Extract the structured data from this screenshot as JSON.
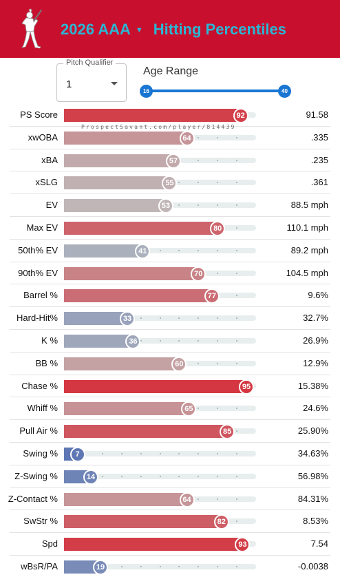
{
  "header": {
    "year_level": "2026 AAA",
    "stat_type": "Hitting Percentiles",
    "background_color": "#c8102e",
    "title_color": "#2bb6d4",
    "logo_icon": "batter-silhouette-icon"
  },
  "controls": {
    "pitch_qualifier": {
      "label": "Pitch Qualifier",
      "value": "1"
    },
    "age_range": {
      "label": "Age Range",
      "min": "16",
      "max": "40",
      "slider_color": "#1976d2"
    }
  },
  "watermark": "ProspectSavant.com/player/814439",
  "metrics": [
    {
      "label": "PS Score",
      "percentile": "92",
      "value": "91.58"
    },
    {
      "label": "xwOBA",
      "percentile": "64",
      "value": ".335"
    },
    {
      "label": "xBA",
      "percentile": "57",
      "value": ".235"
    },
    {
      "label": "xSLG",
      "percentile": "55",
      "value": ".361"
    },
    {
      "label": "EV",
      "percentile": "53",
      "value": "88.5 mph"
    },
    {
      "label": "Max EV",
      "percentile": "80",
      "value": "110.1 mph"
    },
    {
      "label": "50th% EV",
      "percentile": "41",
      "value": "89.2 mph"
    },
    {
      "label": "90th% EV",
      "percentile": "70",
      "value": "104.5 mph"
    },
    {
      "label": "Barrel %",
      "percentile": "77",
      "value": "9.6%"
    },
    {
      "label": "Hard-Hit%",
      "percentile": "33",
      "value": "32.7%"
    },
    {
      "label": "K %",
      "percentile": "36",
      "value": "26.9%"
    },
    {
      "label": "BB %",
      "percentile": "60",
      "value": "12.9%"
    },
    {
      "label": "Chase %",
      "percentile": "95",
      "value": "15.38%"
    },
    {
      "label": "Whiff %",
      "percentile": "65",
      "value": "24.6%"
    },
    {
      "label": "Pull Air %",
      "percentile": "85",
      "value": "25.90%"
    },
    {
      "label": "Swing %",
      "percentile": "7",
      "value": "34.63%"
    },
    {
      "label": "Z-Swing %",
      "percentile": "14",
      "value": "56.98%"
    },
    {
      "label": "Z-Contact %",
      "percentile": "64",
      "value": "84.31%"
    },
    {
      "label": "SwStr %",
      "percentile": "82",
      "value": "8.53%"
    },
    {
      "label": "Spd",
      "percentile": "93",
      "value": "7.54"
    },
    {
      "label": "wBsR/PA",
      "percentile": "19",
      "value": "-0.0038"
    }
  ]
}
